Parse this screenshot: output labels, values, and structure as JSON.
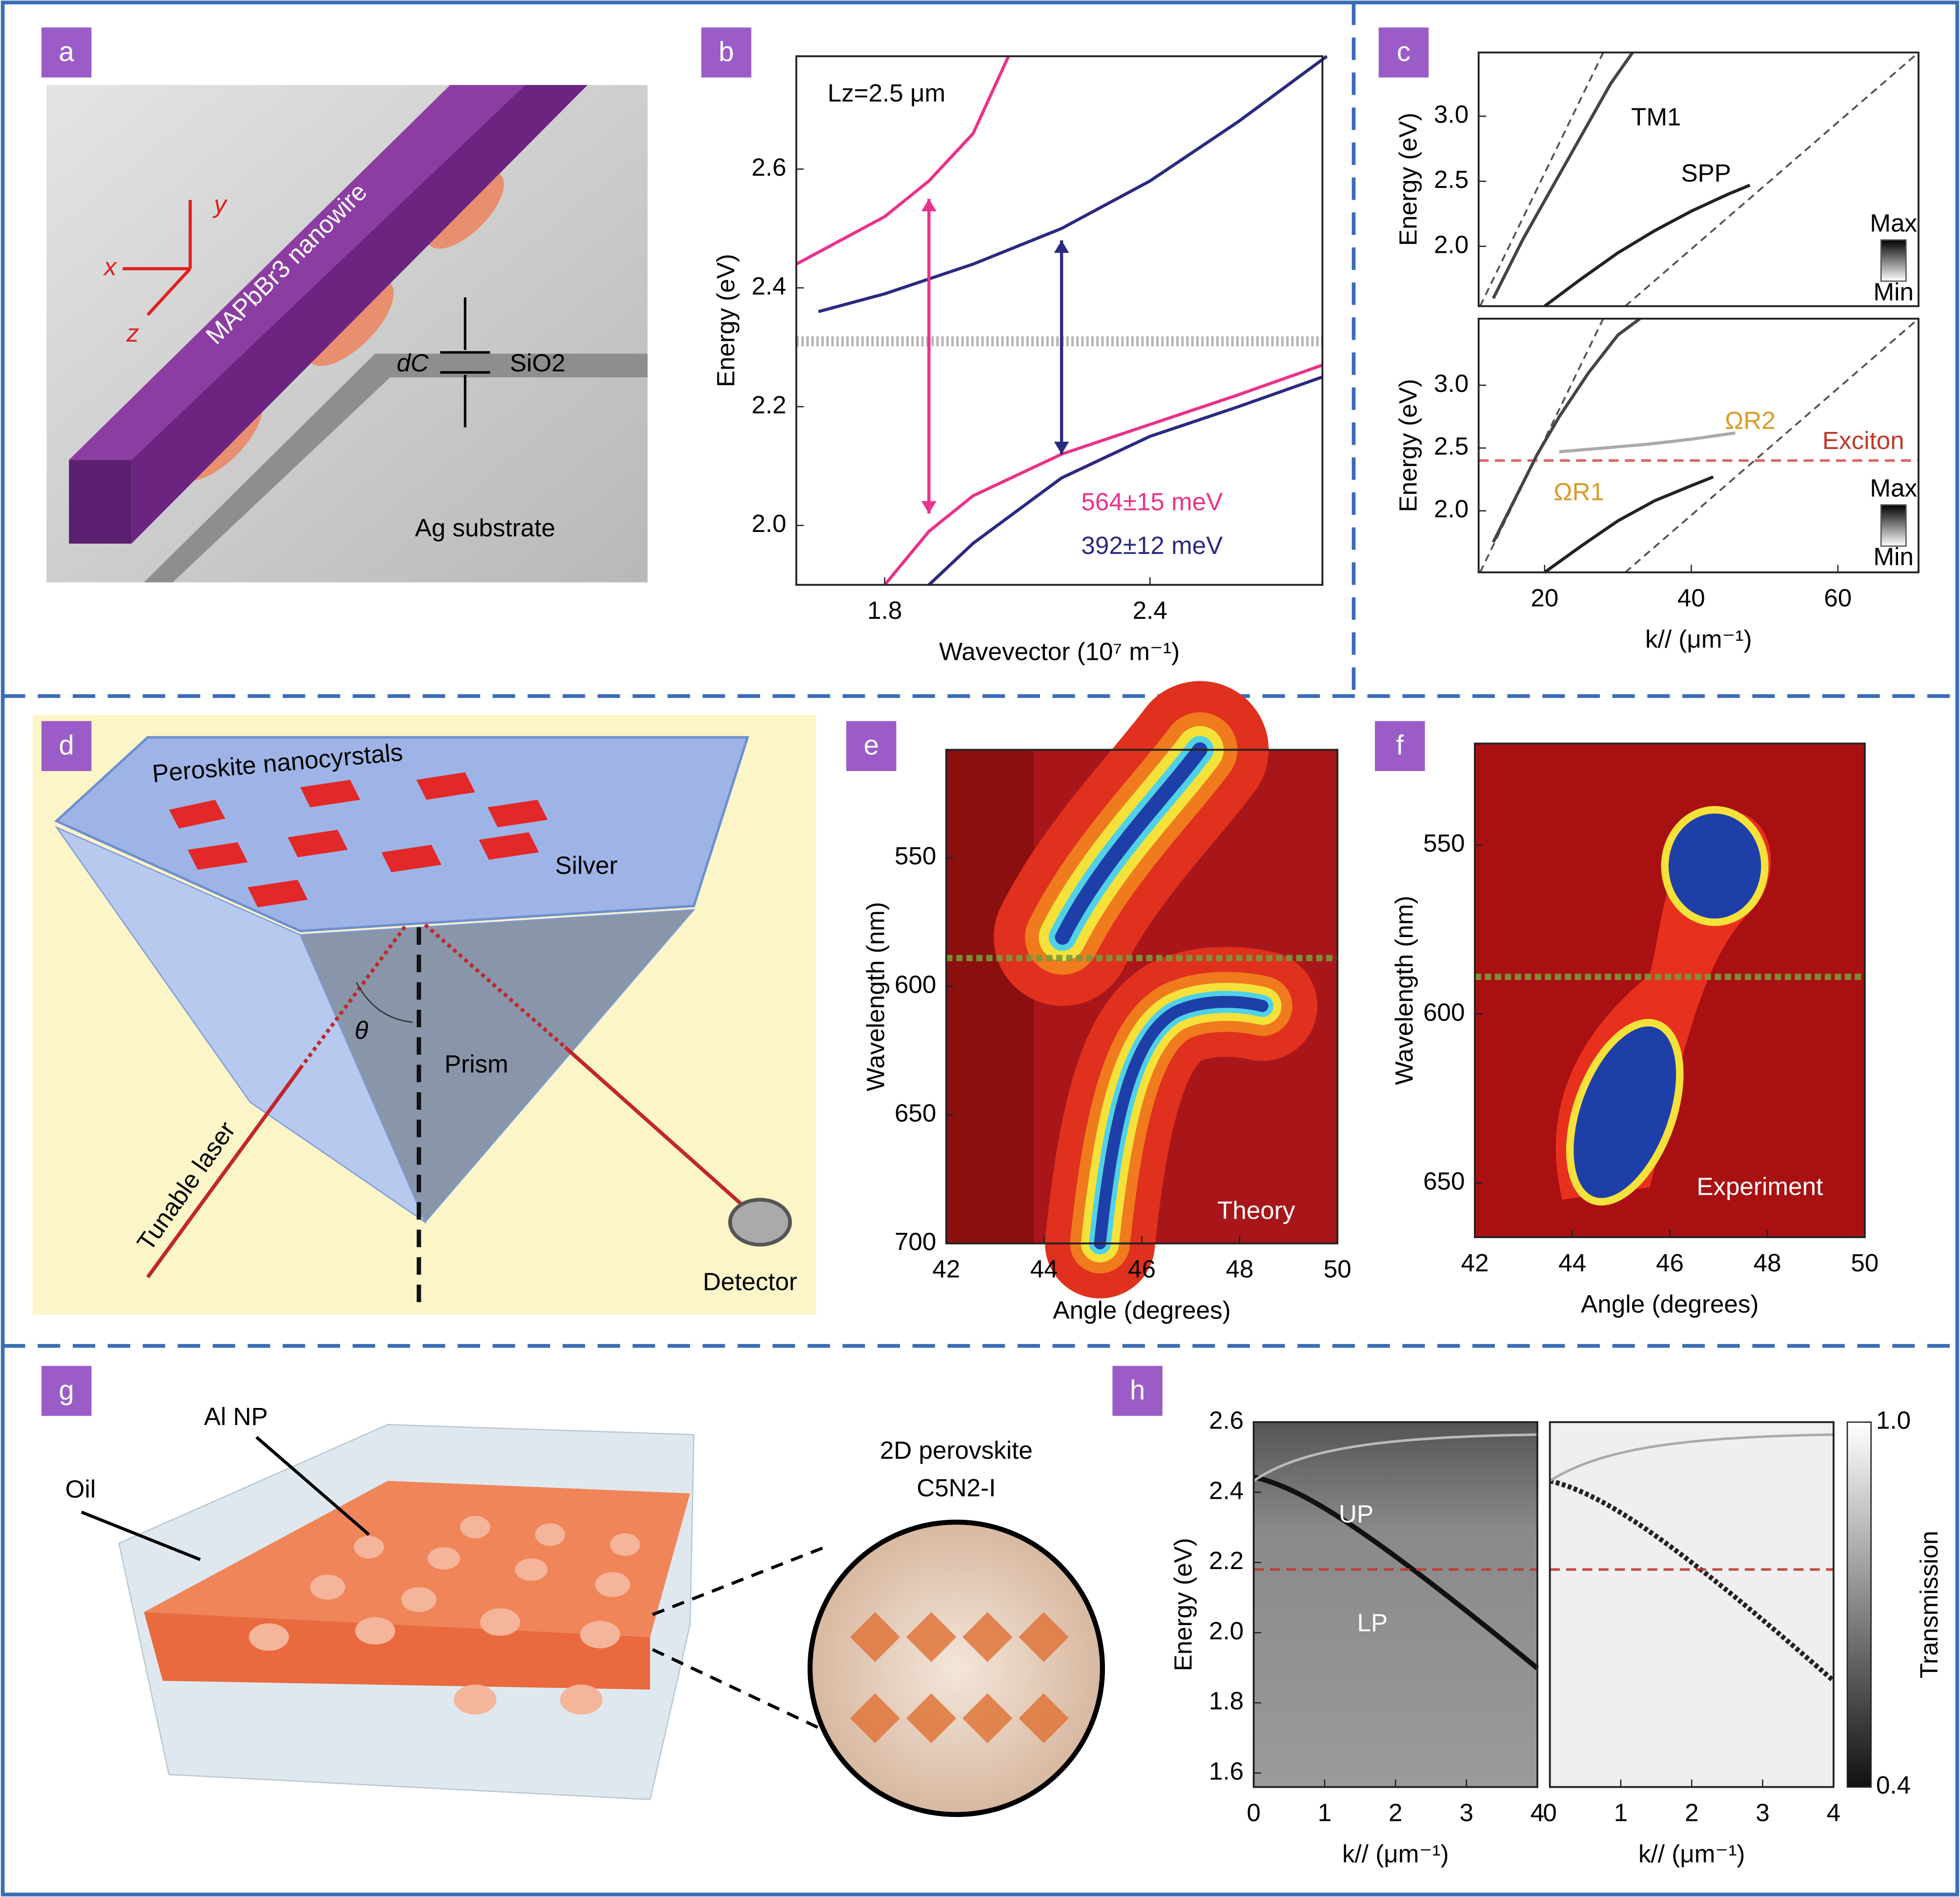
{
  "panels": {
    "labels": [
      "a",
      "b",
      "c",
      "d",
      "e",
      "f",
      "g",
      "h"
    ],
    "a": {
      "wire": "MAPbBr3 nanowire",
      "axes": [
        "x",
        "y",
        "z"
      ],
      "gap": "dC",
      "spacer": "SiO2",
      "substrate": "Ag substrate"
    },
    "d": {
      "crystals": "Peroskite nanocyrstals",
      "film": "Silver",
      "angle": "θ",
      "prism": "Prism",
      "source": "Tunable laser",
      "detector": "Detector"
    },
    "g": {
      "particles": "Al NP",
      "medium": "Oil",
      "material": [
        "2D perovskite",
        "C5N2-I"
      ]
    }
  },
  "chart_data": [
    {
      "type": "line",
      "x_label": "Wavevector (10⁷ m⁻¹)",
      "y_label": "Energy (eV)",
      "xlim": [
        1.6,
        2.79
      ],
      "xticks": [
        1.8,
        2.4
      ],
      "ylim": [
        1.9,
        2.79
      ],
      "yticks": [
        {
          "value": 2,
          "label": "2.0"
        },
        2.2,
        2.4,
        2.6
      ],
      "series": [
        {
          "color": "#e8338a",
          "x": [
            1.6,
            1.7,
            1.8,
            1.9,
            2.0,
            2.08
          ],
          "values": [
            2.44,
            2.48,
            2.52,
            2.58,
            2.66,
            2.79
          ]
        },
        {
          "color": "#e8338a",
          "x": [
            1.8,
            1.9,
            2.0,
            2.2,
            2.4,
            2.6,
            2.79
          ],
          "values": [
            1.9,
            1.99,
            2.05,
            2.12,
            2.17,
            2.22,
            2.27
          ]
        },
        {
          "color": "#2a2a80",
          "x": [
            1.65,
            1.8,
            2.0,
            2.2,
            2.4,
            2.6,
            2.8
          ],
          "values": [
            2.36,
            2.39,
            2.44,
            2.5,
            2.58,
            2.68,
            2.79
          ]
        },
        {
          "color": "#2a2a80",
          "x": [
            1.9,
            2.0,
            2.2,
            2.4,
            2.6,
            2.79
          ],
          "values": [
            1.9,
            1.97,
            2.08,
            2.15,
            2.2,
            2.25
          ]
        }
      ],
      "hlines": [
        {
          "value": 2.31,
          "color": "#b0b0b0"
        }
      ],
      "arrows": [
        {
          "x": 1.9,
          "from": 2.55,
          "to": 2.02,
          "color": "#e8338a"
        },
        {
          "x": 2.2,
          "from": 2.48,
          "to": 2.12,
          "color": "#2a2a80"
        }
      ],
      "annotations": [
        {
          "text": "Lz=2.5 μm",
          "color": "#000000"
        },
        {
          "text": "564±15 meV",
          "color": "#e8338a"
        },
        {
          "text": "392±12 meV",
          "color": "#2a2a80"
        }
      ]
    },
    {
      "type": "line",
      "y_label": "Energy (eV)",
      "xlim": [
        11,
        71
      ],
      "ylim": [
        1.54,
        3.49
      ],
      "yticks": [
        {
          "value": 2,
          "label": "2.0"
        },
        2.5,
        {
          "value": 3,
          "label": "3.0"
        }
      ],
      "series": [
        {
          "color": "#555555",
          "dash": true,
          "x": [
            11.2,
            28
          ],
          "values": [
            1.54,
            3.49
          ]
        },
        {
          "color": "#555555",
          "dash": true,
          "x": [
            31,
            71
          ],
          "values": [
            1.54,
            3.49
          ]
        },
        {
          "color": "#444444",
          "x": [
            13,
            17,
            21,
            25,
            29,
            32
          ],
          "values": [
            1.6,
            2.05,
            2.45,
            2.85,
            3.25,
            3.49
          ]
        },
        {
          "color": "#222222",
          "x": [
            20,
            25,
            30,
            35,
            40,
            45,
            48
          ],
          "values": [
            1.54,
            1.75,
            1.95,
            2.12,
            2.27,
            2.4,
            2.47
          ]
        }
      ],
      "annotations": [
        {
          "text": "TM1",
          "color": "#000000"
        },
        {
          "text": "SPP",
          "color": "#000000"
        },
        {
          "text": "Max",
          "color": "#000000"
        },
        {
          "text": "Min",
          "color": "#000000"
        }
      ]
    },
    {
      "type": "line",
      "y_label": "Energy (eV)",
      "x_label": "k// (μm⁻¹)",
      "xlim": [
        11,
        71
      ],
      "xticks": [
        20,
        40,
        60
      ],
      "ylim": [
        1.51,
        3.53
      ],
      "yticks": [
        {
          "value": 2,
          "label": "2.0"
        },
        2.5,
        {
          "value": 3,
          "label": "3.0"
        }
      ],
      "series": [
        {
          "color": "#555555",
          "dash": true,
          "x": [
            11.2,
            28
          ],
          "values": [
            1.51,
            3.53
          ]
        },
        {
          "color": "#555555",
          "dash": true,
          "x": [
            31,
            71
          ],
          "values": [
            1.51,
            3.53
          ]
        },
        {
          "color": "#444444",
          "x": [
            13,
            16,
            19,
            22,
            26,
            30,
            33
          ],
          "values": [
            1.75,
            2.1,
            2.45,
            2.75,
            3.1,
            3.4,
            3.53
          ]
        },
        {
          "color": "#aaaaaa",
          "x": [
            22,
            28,
            34,
            40,
            46
          ],
          "values": [
            2.47,
            2.5,
            2.53,
            2.57,
            2.62
          ]
        },
        {
          "color": "#222222",
          "x": [
            20,
            25,
            30,
            35,
            40,
            43
          ],
          "values": [
            1.51,
            1.72,
            1.92,
            2.08,
            2.2,
            2.27
          ]
        }
      ],
      "hlines": [
        {
          "value": 2.4,
          "color": "#d9534f"
        }
      ],
      "annotations": [
        {
          "text": "ΩR2",
          "color": "#d99a2a"
        },
        {
          "text": "Exciton",
          "color": "#c0392b"
        },
        {
          "text": "ΩR1",
          "color": "#d99a2a"
        },
        {
          "text": "Max",
          "color": "#000000"
        },
        {
          "text": "Min",
          "color": "#000000"
        }
      ]
    },
    {
      "type": "heatmap",
      "x_label": "Angle (degrees)",
      "y_label": "Wavelength (nm)",
      "xlim": [
        42,
        50
      ],
      "xticks": [
        42,
        44,
        46,
        48,
        50
      ],
      "ylim": [
        700,
        508
      ],
      "yticks": [
        550,
        600,
        650,
        700
      ],
      "hlines": [
        {
          "value": 589,
          "color": "#7a9a3a"
        }
      ],
      "annotations": [
        {
          "text": "Theory",
          "color": "#ffffff"
        }
      ]
    },
    {
      "type": "heatmap",
      "x_label": "Angle (degrees)",
      "y_label": "Wavelength (nm)",
      "xlim": [
        42,
        50
      ],
      "xticks": [
        42,
        44,
        46,
        48,
        50
      ],
      "ylim": [
        666,
        520
      ],
      "yticks": [
        550,
        600,
        650
      ],
      "hlines": [
        {
          "value": 589,
          "color": "#7a9a3a"
        }
      ],
      "annotations": [
        {
          "text": "Experiment",
          "color": "#ffffff"
        }
      ]
    },
    {
      "type": "heatmap",
      "x_label": "k// (μm⁻¹)",
      "y_label": "Energy (eV)",
      "xlim": [
        0,
        4
      ],
      "xticks": [
        0,
        1,
        2,
        3,
        4
      ],
      "ylim": [
        1.56,
        2.6
      ],
      "yticks": [
        1.6,
        1.8,
        {
          "value": 2,
          "label": "2.0"
        },
        2.2,
        2.4,
        2.6
      ],
      "hlines": [
        {
          "value": 2.18,
          "color": "#c0392b"
        }
      ],
      "annotations": [
        {
          "text": "UP",
          "color": "#ffffff"
        },
        {
          "text": "LP",
          "color": "#ffffff"
        }
      ]
    },
    {
      "type": "heatmap",
      "x_label": "k// (μm⁻¹)",
      "xlim": [
        0,
        4
      ],
      "xticks": [
        0,
        1,
        2,
        3,
        4
      ],
      "ylim": [
        1.56,
        2.6
      ],
      "hlines": [
        {
          "value": 2.18,
          "color": "#c0392b"
        }
      ],
      "colorbar": {
        "label": "Transmission",
        "lim": [
          0.4,
          1
        ],
        "ticks": [
          {
            "value": 1,
            "label": "1.0"
          },
          0.4
        ]
      }
    }
  ]
}
